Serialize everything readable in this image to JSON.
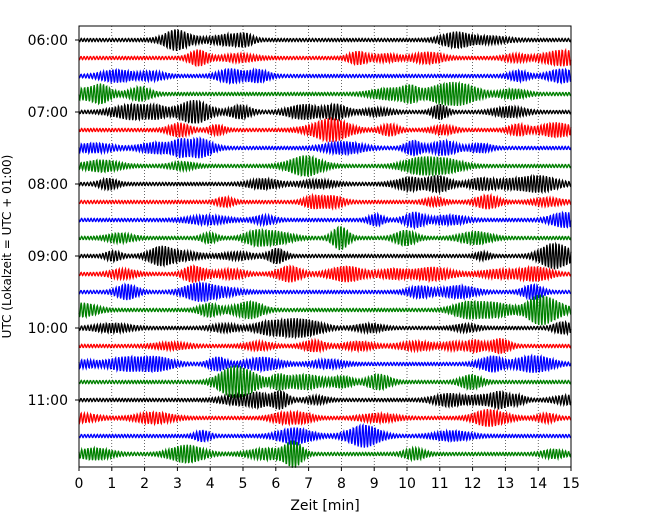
{
  "chart_data": {
    "type": "line",
    "title": "",
    "xlabel": "Zeit  [min]",
    "ylabel": "UTC (Lokalzeit = UTC + 01:00)",
    "xlim": [
      0,
      15
    ],
    "x_ticks": [
      0,
      1,
      2,
      3,
      4,
      5,
      6,
      7,
      8,
      9,
      10,
      11,
      12,
      13,
      14,
      15
    ],
    "x_tick_labels": [
      "0",
      "1",
      "2",
      "3",
      "4",
      "5",
      "6",
      "7",
      "8",
      "9",
      "10",
      "11",
      "12",
      "13",
      "14",
      "15"
    ],
    "y_tick_labels": [
      "06:00",
      "07:00",
      "08:00",
      "09:00",
      "10:00",
      "11:00"
    ],
    "y_tick_trace_index": [
      0,
      4,
      8,
      12,
      16,
      20
    ],
    "grid": "vertical dotted",
    "trace_minutes": 15,
    "trace_colors": [
      "#000000",
      "#ff0000",
      "#0000ff",
      "#008000"
    ],
    "traces": [
      {
        "start": "06:00"
      },
      {
        "start": "06:15"
      },
      {
        "start": "06:30"
      },
      {
        "start": "06:45"
      },
      {
        "start": "07:00"
      },
      {
        "start": "07:15"
      },
      {
        "start": "07:30"
      },
      {
        "start": "07:45"
      },
      {
        "start": "08:00"
      },
      {
        "start": "08:15"
      },
      {
        "start": "08:30"
      },
      {
        "start": "08:45"
      },
      {
        "start": "09:00"
      },
      {
        "start": "09:15"
      },
      {
        "start": "09:30"
      },
      {
        "start": "09:45"
      },
      {
        "start": "10:00"
      },
      {
        "start": "10:15"
      },
      {
        "start": "10:30"
      },
      {
        "start": "10:45"
      },
      {
        "start": "11:00"
      },
      {
        "start": "11:15"
      },
      {
        "start": "11:30"
      },
      {
        "start": "11:45"
      }
    ]
  }
}
